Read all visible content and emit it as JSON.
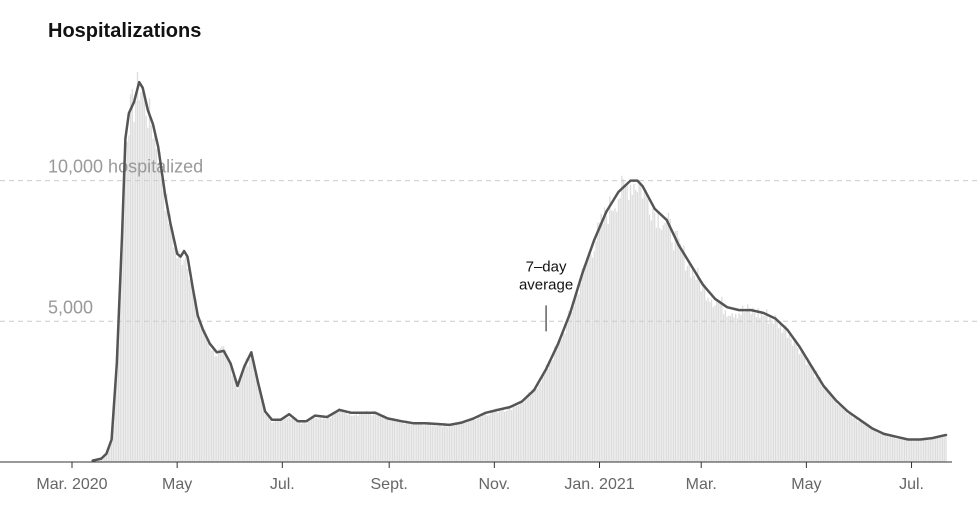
{
  "chart_data": {
    "type": "bar",
    "title": "Hospitalizations",
    "y_axis_unit": "hospitalized",
    "ylim": [
      0,
      14500
    ],
    "grid": true,
    "y_ticks": [
      {
        "value": 5000,
        "label": "5,000"
      },
      {
        "value": 10000,
        "label": "10,000 hospitalized"
      }
    ],
    "x_ticks": [
      {
        "date": "2020-03-01",
        "label": "Mar. 2020"
      },
      {
        "date": "2020-05-01",
        "label": "May"
      },
      {
        "date": "2020-07-01",
        "label": "Jul."
      },
      {
        "date": "2020-09-01",
        "label": "Sept."
      },
      {
        "date": "2020-11-01",
        "label": "Nov."
      },
      {
        "date": "2021-01-01",
        "label": "Jan. 2021"
      },
      {
        "date": "2021-03-01",
        "label": "Mar."
      },
      {
        "date": "2021-05-01",
        "label": "May"
      },
      {
        "date": "2021-07-01",
        "label": "Jul."
      }
    ],
    "x_range": [
      "2020-03-01",
      "2021-07-21"
    ],
    "series": [
      {
        "name": "7-day average",
        "type": "line",
        "points": [
          [
            "2020-03-13",
            50
          ],
          [
            "2020-03-18",
            120
          ],
          [
            "2020-03-21",
            300
          ],
          [
            "2020-03-24",
            800
          ],
          [
            "2020-03-27",
            3500
          ],
          [
            "2020-03-30",
            8000
          ],
          [
            "2020-04-01",
            11500
          ],
          [
            "2020-04-03",
            12400
          ],
          [
            "2020-04-06",
            12800
          ],
          [
            "2020-04-09",
            13500
          ],
          [
            "2020-04-11",
            13300
          ],
          [
            "2020-04-14",
            12500
          ],
          [
            "2020-04-17",
            12000
          ],
          [
            "2020-04-20",
            11200
          ],
          [
            "2020-04-24",
            9500
          ],
          [
            "2020-04-27",
            8500
          ],
          [
            "2020-05-01",
            7400
          ],
          [
            "2020-05-03",
            7300
          ],
          [
            "2020-05-05",
            7500
          ],
          [
            "2020-05-07",
            7300
          ],
          [
            "2020-05-10",
            6200
          ],
          [
            "2020-05-13",
            5200
          ],
          [
            "2020-05-16",
            4700
          ],
          [
            "2020-05-20",
            4200
          ],
          [
            "2020-05-24",
            3900
          ],
          [
            "2020-05-28",
            3950
          ],
          [
            "2020-06-01",
            3500
          ],
          [
            "2020-06-05",
            2700
          ],
          [
            "2020-06-09",
            3400
          ],
          [
            "2020-06-13",
            3900
          ],
          [
            "2020-06-17",
            2800
          ],
          [
            "2020-06-21",
            1800
          ],
          [
            "2020-06-25",
            1500
          ],
          [
            "2020-06-30",
            1500
          ],
          [
            "2020-07-05",
            1700
          ],
          [
            "2020-07-10",
            1450
          ],
          [
            "2020-07-15",
            1450
          ],
          [
            "2020-07-20",
            1650
          ],
          [
            "2020-07-27",
            1600
          ],
          [
            "2020-08-03",
            1850
          ],
          [
            "2020-08-10",
            1750
          ],
          [
            "2020-08-17",
            1750
          ],
          [
            "2020-08-24",
            1750
          ],
          [
            "2020-08-31",
            1550
          ],
          [
            "2020-09-08",
            1450
          ],
          [
            "2020-09-15",
            1380
          ],
          [
            "2020-09-22",
            1380
          ],
          [
            "2020-09-29",
            1350
          ],
          [
            "2020-10-06",
            1320
          ],
          [
            "2020-10-13",
            1400
          ],
          [
            "2020-10-20",
            1550
          ],
          [
            "2020-10-27",
            1750
          ],
          [
            "2020-11-03",
            1850
          ],
          [
            "2020-11-10",
            1950
          ],
          [
            "2020-11-17",
            2150
          ],
          [
            "2020-11-24",
            2550
          ],
          [
            "2020-12-01",
            3300
          ],
          [
            "2020-12-08",
            4200
          ],
          [
            "2020-12-15",
            5300
          ],
          [
            "2020-12-22",
            6700
          ],
          [
            "2020-12-29",
            7900
          ],
          [
            "2021-01-05",
            8900
          ],
          [
            "2021-01-12",
            9600
          ],
          [
            "2021-01-19",
            10000
          ],
          [
            "2021-01-23",
            10000
          ],
          [
            "2021-01-26",
            9800
          ],
          [
            "2021-02-02",
            9000
          ],
          [
            "2021-02-09",
            8600
          ],
          [
            "2021-02-16",
            7700
          ],
          [
            "2021-02-23",
            7000
          ],
          [
            "2021-03-02",
            6300
          ],
          [
            "2021-03-09",
            5800
          ],
          [
            "2021-03-16",
            5500
          ],
          [
            "2021-03-23",
            5400
          ],
          [
            "2021-03-30",
            5400
          ],
          [
            "2021-04-06",
            5300
          ],
          [
            "2021-04-13",
            5100
          ],
          [
            "2021-04-20",
            4700
          ],
          [
            "2021-04-27",
            4100
          ],
          [
            "2021-05-04",
            3400
          ],
          [
            "2021-05-11",
            2700
          ],
          [
            "2021-05-18",
            2200
          ],
          [
            "2021-05-25",
            1800
          ],
          [
            "2021-06-01",
            1500
          ],
          [
            "2021-06-08",
            1200
          ],
          [
            "2021-06-15",
            1000
          ],
          [
            "2021-06-22",
            900
          ],
          [
            "2021-06-29",
            800
          ],
          [
            "2021-07-06",
            800
          ],
          [
            "2021-07-13",
            850
          ],
          [
            "2021-07-20",
            950
          ],
          [
            "2021-07-21",
            960
          ]
        ]
      }
    ],
    "annotations": [
      {
        "text_lines": [
          "7–day",
          "average"
        ],
        "date": "2020-12-01",
        "value": 4500
      }
    ]
  }
}
